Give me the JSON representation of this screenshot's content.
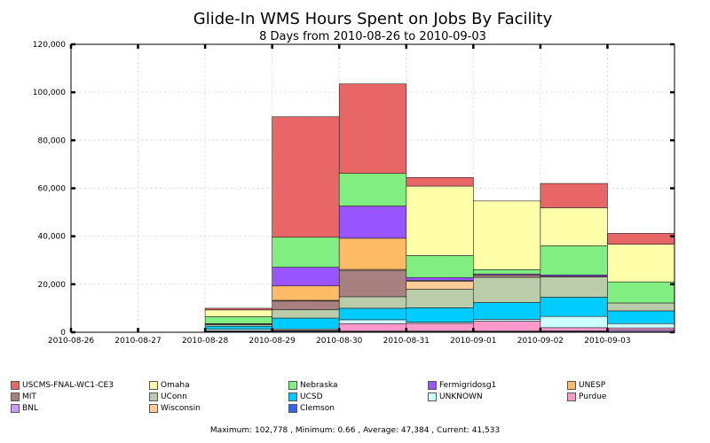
{
  "chart_data": {
    "type": "stacked-bar",
    "title": "Glide-In WMS Hours Spent on Jobs By Facility",
    "subtitle": "8 Days from 2010-08-26 to 2010-09-03",
    "xlabel": "",
    "ylabel": "",
    "ylim": [
      0,
      120000
    ],
    "yticks": [
      "0",
      "20,000",
      "40,000",
      "60,000",
      "80,000",
      "100,000",
      "120,000"
    ],
    "ytick_values": [
      0,
      20000,
      40000,
      60000,
      80000,
      100000,
      120000
    ],
    "categories": [
      "2010-08-26",
      "2010-08-27",
      "2010-08-28",
      "2010-08-29",
      "2010-08-30",
      "2010-08-31",
      "2010-09-01",
      "2010-09-02",
      "2010-09-03"
    ],
    "grid": true,
    "series": [
      {
        "name": "Clemson",
        "color": "#3366ee",
        "values": [
          0,
          0,
          300,
          400,
          300,
          300,
          300,
          300,
          300
        ]
      },
      {
        "name": "BNL",
        "color": "#cc99ff",
        "values": [
          0,
          0,
          100,
          200,
          200,
          200,
          200,
          300,
          700
        ]
      },
      {
        "name": "Purdue",
        "color": "#ff99cc",
        "values": [
          0,
          0,
          200,
          300,
          3100,
          3200,
          4100,
          1300,
          800
        ]
      },
      {
        "name": "UNKNOWN",
        "color": "#ccffff",
        "values": [
          0,
          0,
          700,
          500,
          1600,
          500,
          800,
          4700,
          1800
        ]
      },
      {
        "name": "UCSD",
        "color": "#00ccff",
        "values": [
          0,
          0,
          1200,
          4500,
          4800,
          6000,
          7000,
          8000,
          5300
        ]
      },
      {
        "name": "UConn",
        "color": "#bbccaa",
        "values": [
          0,
          0,
          600,
          3500,
          4800,
          7700,
          10500,
          8500,
          3300
        ]
      },
      {
        "name": "MIT",
        "color": "#a88080",
        "values": [
          0,
          0,
          0,
          3600,
          11000,
          0,
          1000,
          200,
          0
        ]
      },
      {
        "name": "Wisconsin",
        "color": "#ffcc99",
        "values": [
          0,
          0,
          300,
          300,
          400,
          3400,
          0,
          0,
          0
        ]
      },
      {
        "name": "UNESP",
        "color": "#ffbb66",
        "values": [
          0,
          0,
          200,
          6000,
          13000,
          300,
          0,
          0,
          0
        ]
      },
      {
        "name": "Fermigridosg1",
        "color": "#9955ff",
        "values": [
          0,
          0,
          0,
          7800,
          13400,
          1200,
          400,
          600,
          0
        ]
      },
      {
        "name": "Nebraska",
        "color": "#80ee80",
        "values": [
          0,
          0,
          2900,
          12500,
          13600,
          9200,
          1800,
          12100,
          8800
        ]
      },
      {
        "name": "Omaha",
        "color": "#ffffaa",
        "values": [
          0,
          0,
          2800,
          0,
          0,
          28900,
          28600,
          15900,
          15700
        ]
      },
      {
        "name": "USCMS-FNAL-WC1-CE3",
        "color": "#e86666",
        "values": [
          0,
          0,
          700,
          50200,
          37300,
          3600,
          0,
          10100,
          4500
        ]
      }
    ],
    "legend_order": [
      "USCMS-FNAL-WC1-CE3",
      "Omaha",
      "Nebraska",
      "Fermigridosg1",
      "UNESP",
      "MIT",
      "UConn",
      "UCSD",
      "UNKNOWN",
      "Purdue",
      "BNL",
      "Wisconsin",
      "Clemson"
    ],
    "legend_position": "bottom"
  },
  "footer": "Maximum: 102,778 , Minimum: 0.66 , Average: 47,384 , Current: 41,533"
}
